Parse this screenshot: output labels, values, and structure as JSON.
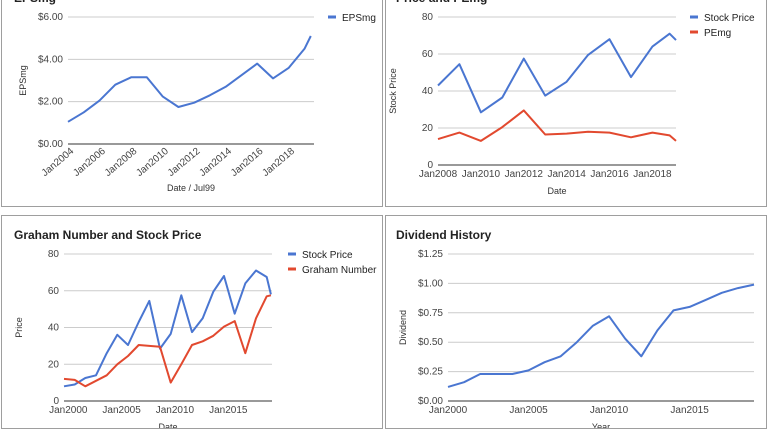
{
  "charts": [
    {
      "id": "eps",
      "type": "line",
      "title": "EPSmg",
      "xlabel": "Date / Jul99",
      "ylabel": "EPSmg",
      "xlim": [
        2003.6,
        2019.2
      ],
      "ylim": [
        0,
        6
      ],
      "yticks": [
        0,
        2,
        4,
        6
      ],
      "ytick_labels": [
        "$0.00",
        "$2.00",
        "$4.00",
        "$6.00"
      ],
      "xticks": [
        2004,
        2006,
        2008,
        2010,
        2012,
        2014,
        2016,
        2018
      ],
      "xtick_labels": [
        "Jan2004",
        "Jan2006",
        "Jan2008",
        "Jan2010",
        "Jan2012",
        "Jan2014",
        "Jan2016",
        "Jan2018"
      ],
      "rotate_xticks": true,
      "legend": "right",
      "series": [
        {
          "name": "EPSmg",
          "color": "#4a76d1",
          "x": [
            2003.6,
            2004.6,
            2005.6,
            2006.6,
            2007.6,
            2008.6,
            2009.6,
            2010.6,
            2011.6,
            2012.6,
            2013.6,
            2014.6,
            2015.6,
            2016.6,
            2017.6,
            2018.6,
            2019.0
          ],
          "y": [
            1.05,
            1.5,
            2.05,
            2.8,
            3.15,
            3.15,
            2.25,
            1.75,
            1.95,
            2.3,
            2.7,
            3.25,
            3.8,
            3.1,
            3.6,
            4.5,
            5.1
          ]
        }
      ]
    },
    {
      "id": "price-pe",
      "type": "line",
      "title": "Price and PEmg",
      "xlabel": "Date",
      "ylabel": "Stock Price",
      "xlim": [
        2008,
        2019.1
      ],
      "ylim": [
        0,
        80
      ],
      "yticks": [
        0,
        20,
        40,
        60,
        80
      ],
      "ytick_labels": [
        "0",
        "20",
        "40",
        "60",
        "80"
      ],
      "xticks": [
        2008,
        2010,
        2012,
        2014,
        2016,
        2018
      ],
      "xtick_labels": [
        "Jan2008",
        "Jan2010",
        "Jan2012",
        "Jan2014",
        "Jan2016",
        "Jan2018"
      ],
      "rotate_xticks": false,
      "legend": "right",
      "series": [
        {
          "name": "Stock Price",
          "color": "#4a76d1",
          "x": [
            2008,
            2009,
            2010,
            2011,
            2012,
            2013,
            2014,
            2015,
            2016,
            2017,
            2018,
            2018.8,
            2019.1
          ],
          "y": [
            43,
            54.5,
            28.5,
            36.5,
            57.5,
            37.5,
            45,
            59.5,
            68,
            47.5,
            64,
            71,
            67.5
          ]
        },
        {
          "name": "PEmg",
          "color": "#e2492f",
          "x": [
            2008,
            2009,
            2010,
            2011,
            2012,
            2013,
            2014,
            2015,
            2016,
            2017,
            2018,
            2018.8,
            2019.1
          ],
          "y": [
            14,
            17.5,
            13,
            20.5,
            29.5,
            16.5,
            17,
            18,
            17.5,
            15,
            17.5,
            16,
            13
          ]
        }
      ]
    },
    {
      "id": "graham",
      "type": "line",
      "title": "Graham Number and Stock Price",
      "xlabel": "Date",
      "ylabel": "Price",
      "xlim": [
        1999.6,
        2019.1
      ],
      "ylim": [
        0,
        80
      ],
      "yticks": [
        0,
        20,
        40,
        60,
        80
      ],
      "ytick_labels": [
        "0",
        "20",
        "40",
        "60",
        "80"
      ],
      "xticks": [
        2000,
        2005,
        2010,
        2015
      ],
      "xtick_labels": [
        "Jan2000",
        "Jan2005",
        "Jan2010",
        "Jan2015"
      ],
      "rotate_xticks": false,
      "legend": "right",
      "series": [
        {
          "name": "Stock Price",
          "color": "#4a76d1",
          "x": [
            1999.6,
            2000.6,
            2001.6,
            2002.6,
            2003.6,
            2004.6,
            2005.6,
            2006.6,
            2007.6,
            2008.6,
            2009.6,
            2010.6,
            2011.6,
            2012.6,
            2013.6,
            2014.6,
            2015.6,
            2016.6,
            2017.6,
            2018.6,
            2019.0
          ],
          "y": [
            8,
            9,
            12.5,
            14,
            26,
            36,
            30.5,
            43,
            54.5,
            28.5,
            36.5,
            57.5,
            37.5,
            45,
            59.5,
            68,
            47.5,
            64,
            71,
            67.5,
            58
          ]
        },
        {
          "name": "Graham Number",
          "color": "#e2492f",
          "x": [
            1999.6,
            2000.6,
            2001.6,
            2002.6,
            2003.6,
            2004.6,
            2005.6,
            2006.6,
            2007.6,
            2008.6,
            2009.6,
            2010.6,
            2011.6,
            2012.6,
            2013.6,
            2014.6,
            2015.6,
            2016.6,
            2017.6,
            2018.6,
            2019.0
          ],
          "y": [
            12,
            11.5,
            8,
            11,
            14,
            20,
            24.5,
            30.5,
            30,
            29.5,
            10,
            20,
            30.5,
            32.5,
            35.5,
            40.5,
            43.5,
            26,
            45,
            57,
            57.5
          ]
        }
      ]
    },
    {
      "id": "dividend",
      "type": "line",
      "title": "Dividend History",
      "xlabel": "Year",
      "ylabel": "Dividend",
      "xlim": [
        2000,
        2019
      ],
      "ylim": [
        0,
        1.25
      ],
      "yticks": [
        0,
        0.25,
        0.5,
        0.75,
        1,
        1.25
      ],
      "ytick_labels": [
        "$0.00",
        "$0.25",
        "$0.50",
        "$0.75",
        "$1.00",
        "$1.25"
      ],
      "xticks": [
        2000,
        2005,
        2010,
        2015
      ],
      "xtick_labels": [
        "Jan2000",
        "Jan2005",
        "Jan2010",
        "Jan2015"
      ],
      "rotate_xticks": false,
      "legend": "none",
      "series": [
        {
          "name": "",
          "color": "#4a76d1",
          "x": [
            2000,
            2001,
            2002,
            2003,
            2004,
            2005,
            2006,
            2007,
            2008,
            2009,
            2010,
            2011,
            2012,
            2013,
            2014,
            2015,
            2016,
            2017,
            2018,
            2019
          ],
          "y": [
            0.12,
            0.16,
            0.23,
            0.23,
            0.23,
            0.26,
            0.33,
            0.38,
            0.5,
            0.64,
            0.72,
            0.53,
            0.38,
            0.6,
            0.77,
            0.8,
            0.86,
            0.92,
            0.96,
            0.99
          ]
        }
      ]
    }
  ]
}
